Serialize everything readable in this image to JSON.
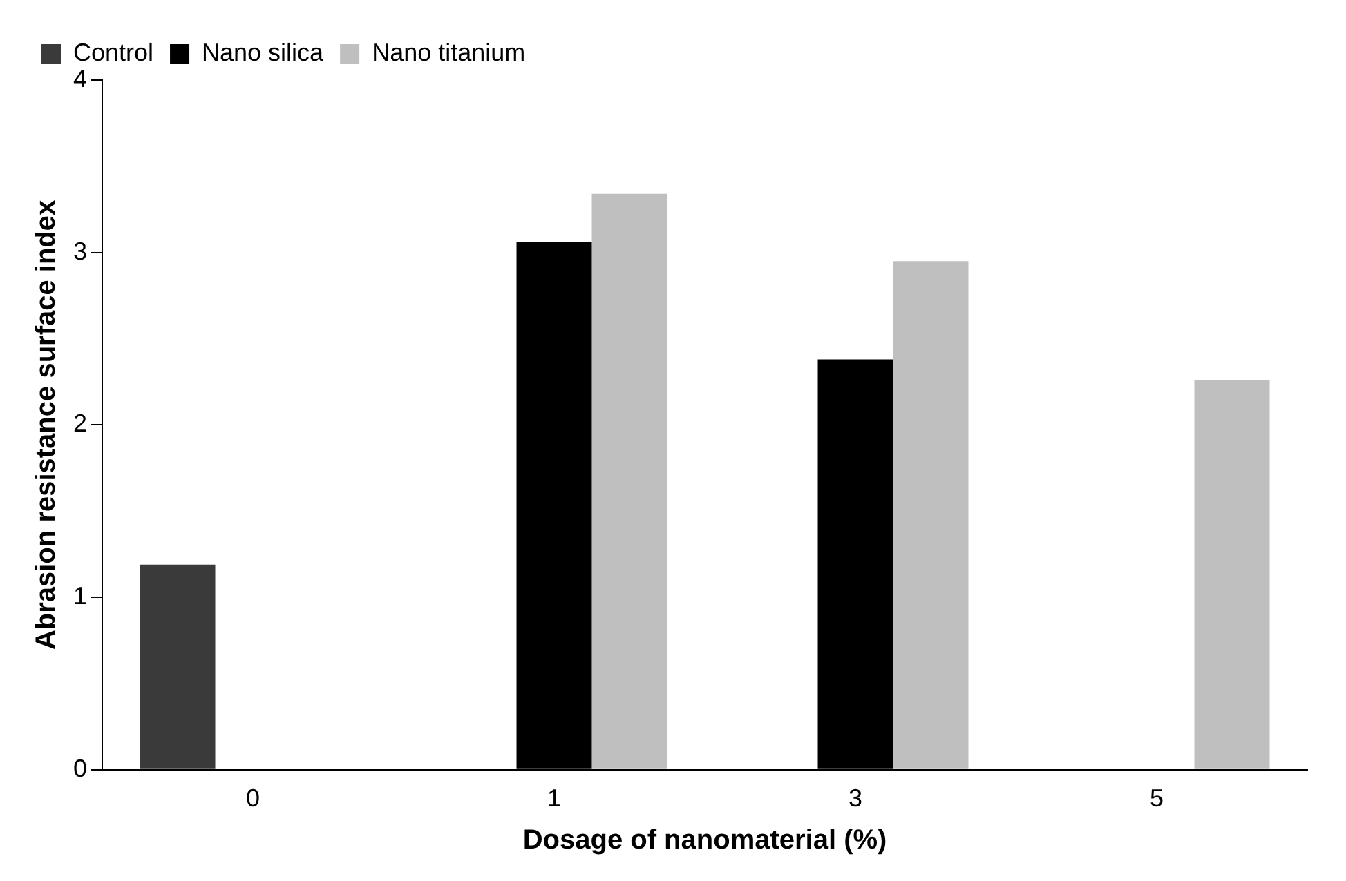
{
  "chart_data": {
    "type": "bar",
    "xlabel": "Dosage of nanomaterial (%)",
    "ylabel": "Abrasion resistance surface index",
    "categories": [
      "0",
      "1",
      "3",
      "5"
    ],
    "series": [
      {
        "name": "Control",
        "color": "#3a3a3a",
        "values": [
          1.19,
          null,
          null,
          null
        ]
      },
      {
        "name": "Nano silica",
        "color": "#000000",
        "values": [
          null,
          3.06,
          2.38,
          null
        ]
      },
      {
        "name": "Nano titanium",
        "color": "#bfbfbf",
        "values": [
          null,
          3.34,
          2.95,
          2.26
        ]
      }
    ],
    "ylim": [
      0,
      4
    ],
    "yticks": [
      0,
      1,
      2,
      3,
      4
    ],
    "grid": false,
    "legend": "top left"
  }
}
